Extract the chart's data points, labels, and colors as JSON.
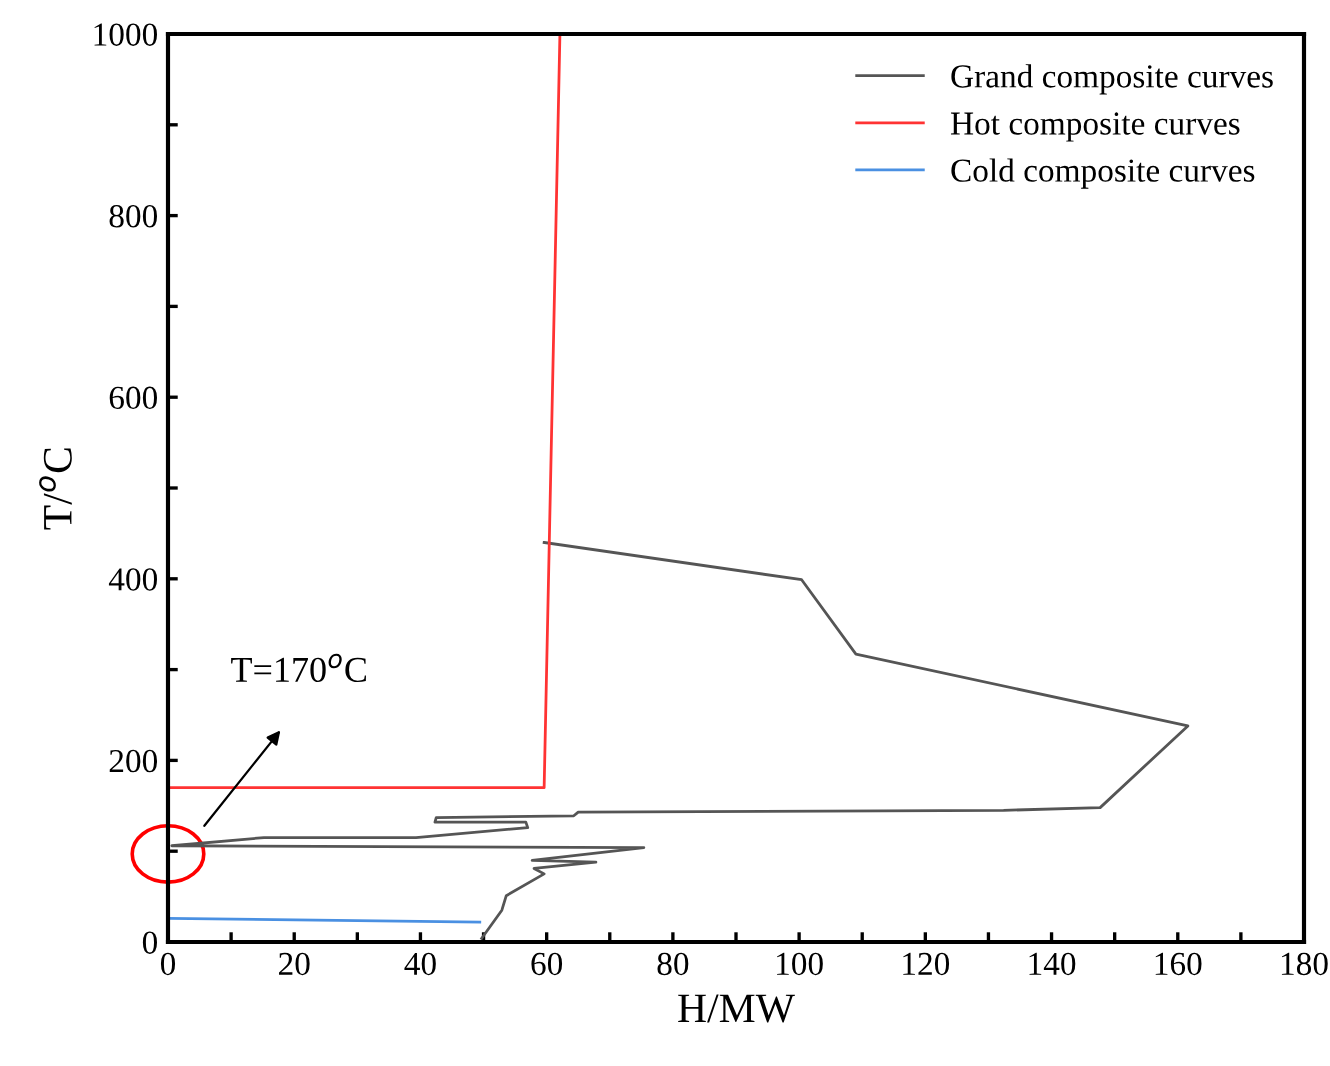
{
  "chart_data": {
    "type": "line",
    "xlabel": "H/MW",
    "ylabel": "T/$^{o}$C",
    "xlim": [
      0,
      180
    ],
    "ylim": [
      0,
      1000
    ],
    "xticks": [
      0,
      {
        "value": 10,
        "label": null
      },
      20,
      {
        "value": 30,
        "label": null
      },
      40,
      {
        "value": 50,
        "label": null
      },
      60,
      {
        "value": 70,
        "label": null
      },
      80,
      {
        "value": 90,
        "label": null
      },
      100,
      {
        "value": 110,
        "label": null
      },
      120,
      {
        "value": 130,
        "label": null
      },
      140,
      {
        "value": 150,
        "label": null
      },
      160,
      {
        "value": 170,
        "label": null
      },
      180
    ],
    "yticks": [
      0,
      {
        "value": 100,
        "label": null
      },
      200,
      {
        "value": 300,
        "label": null
      },
      400,
      {
        "value": 500,
        "label": null
      },
      600,
      {
        "value": 700,
        "label": null
      },
      800,
      {
        "value": 900,
        "label": null
      },
      1000
    ],
    "series": [
      {
        "name": "Grand composite curves",
        "color": "#555555",
        "x": [
          59.6,
          100.4,
          109,
          161.6,
          147.7,
          132.4,
          65,
          64.3,
          42.5,
          42.3,
          56.7,
          57,
          39.3,
          15.2,
          0.6,
          75.4,
          57.7,
          67.8,
          58,
          59.6,
          53.6,
          52.9,
          49.7
        ],
        "values": [
          440,
          399,
          317,
          238,
          148,
          145,
          143,
          139,
          137,
          132,
          132,
          126,
          115,
          115,
          106,
          104,
          90,
          88,
          81,
          75,
          51,
          35,
          4
        ]
      },
      {
        "name": "Hot composite curves",
        "color": "#ff3333",
        "x": [
          0,
          59.6,
          62.1
        ],
        "values": [
          170,
          170,
          1000
        ]
      },
      {
        "name": "Cold composite curves",
        "color": "#4a90e2",
        "x": [
          0,
          49.4
        ],
        "values": [
          26,
          22
        ]
      }
    ],
    "annotations": [
      "T=170$^{o}$C"
    ],
    "legend": "top right",
    "grid": false
  }
}
